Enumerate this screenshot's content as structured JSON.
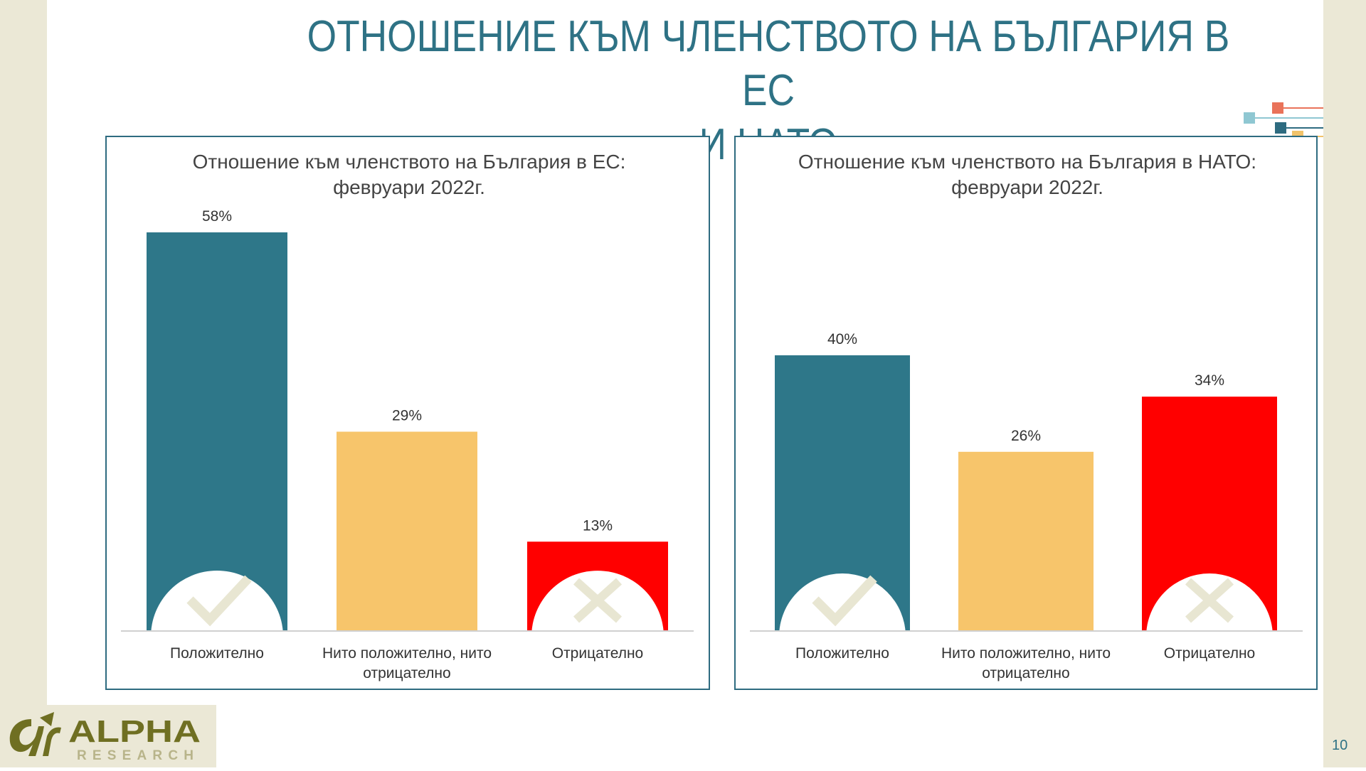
{
  "slide": {
    "title": "ОТНОШЕНИЕ КЪМ ЧЛЕНСТВОТО НА БЪЛГАРИЯ В ЕС И НАТО",
    "title_lines": [
      "ОТНОШЕНИЕ КЪМ ЧЛЕНСТВОТО НА БЪЛГАРИЯ В ЕС",
      "И НАТО"
    ],
    "page_number": "10",
    "logo": {
      "brand": "ALPHA",
      "sub": "RESEARCH"
    }
  },
  "colors": {
    "positive": "#2e7789",
    "neutral": "#f7c56b",
    "negative": "#ff0000",
    "title": "#2e7285",
    "panel_border": "#2e6b80",
    "icon": "#e8e6d2"
  },
  "chart_data": [
    {
      "type": "bar",
      "title": "Отношение към членството на България в ЕС: февруари 2022г.",
      "title_lines": [
        "Отношение към членството на България в ЕС:",
        "февруари 2022г."
      ],
      "categories": [
        "Положително",
        "Нито положително, нито отрицателно",
        "Отрицателно"
      ],
      "category_lines": [
        [
          "Положително"
        ],
        [
          "Нито положително, нито",
          "отрицателно"
        ],
        [
          "Отрицателно"
        ]
      ],
      "values": [
        58,
        29,
        13
      ],
      "value_labels": [
        "58%",
        "29%",
        "13%"
      ],
      "icons": [
        "check-icon",
        "",
        "cross-icon"
      ],
      "ylim": [
        0,
        58
      ],
      "grid": false,
      "legend": "none"
    },
    {
      "type": "bar",
      "title": "Отношение към членството на България в НАТО: февруари 2022г.",
      "title_lines": [
        "Отношение към членството на България в НАТО:",
        "февруари 2022г."
      ],
      "categories": [
        "Положително",
        "Нито положително, нито отрицателно",
        "Отрицателно"
      ],
      "category_lines": [
        [
          "Положително"
        ],
        [
          "Нито положително, нито",
          "отрицателно"
        ],
        [
          "Отрицателно"
        ]
      ],
      "values": [
        40,
        26,
        34
      ],
      "value_labels": [
        "40%",
        "26%",
        "34%"
      ],
      "icons": [
        "check-icon",
        "",
        "cross-icon"
      ],
      "ylim": [
        0,
        40
      ],
      "grid": false,
      "legend": "none"
    }
  ]
}
